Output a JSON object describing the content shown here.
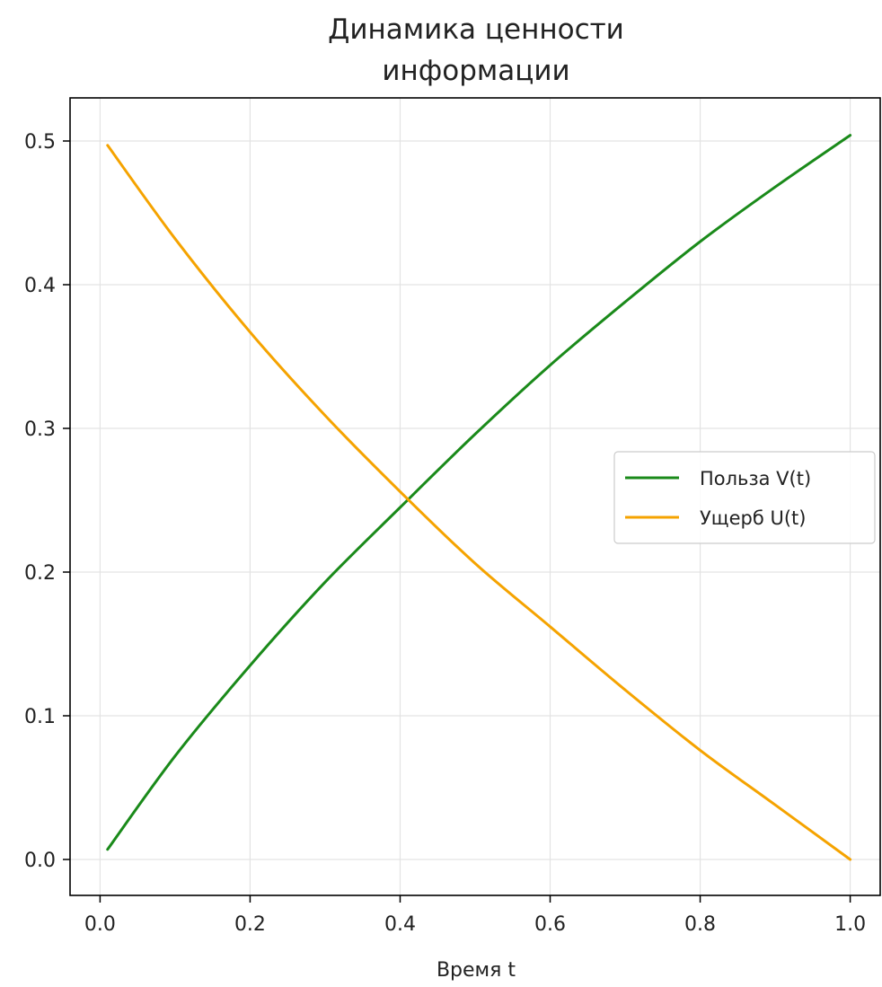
{
  "chart_data": {
    "type": "line",
    "title_lines": [
      "Динамика ценности",
      "информации"
    ],
    "xlabel": "Время t",
    "ylabel": "",
    "xlim": [
      -0.04,
      1.04
    ],
    "ylim": [
      -0.025,
      0.53
    ],
    "x_ticks": [
      0.0,
      0.2,
      0.4,
      0.6,
      0.8,
      1.0
    ],
    "x_tick_labels": [
      "0.0",
      "0.2",
      "0.4",
      "0.6",
      "0.8",
      "1.0"
    ],
    "y_ticks": [
      0.0,
      0.1,
      0.2,
      0.3,
      0.4,
      0.5
    ],
    "y_tick_labels": [
      "0.0",
      "0.1",
      "0.2",
      "0.3",
      "0.4",
      "0.5"
    ],
    "grid": true,
    "legend_position": "center-right",
    "x": [
      0.01,
      0.1,
      0.2,
      0.3,
      0.4,
      0.5,
      0.6,
      0.7,
      0.8,
      0.9,
      1.0
    ],
    "series": [
      {
        "name": "Польза V(t)",
        "color": "#1a8a1a",
        "values": [
          0.007,
          0.072,
          0.135,
          0.193,
          0.245,
          0.296,
          0.344,
          0.388,
          0.43,
          0.468,
          0.504
        ]
      },
      {
        "name": "Ущерб U(t)",
        "color": "#f5a300",
        "values": [
          0.497,
          0.432,
          0.367,
          0.309,
          0.256,
          0.206,
          0.162,
          0.118,
          0.076,
          0.038,
          0.0
        ]
      }
    ]
  }
}
